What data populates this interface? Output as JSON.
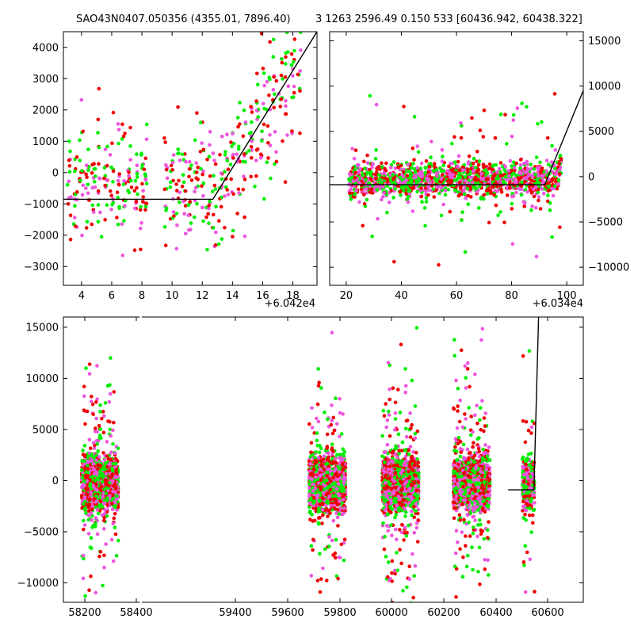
{
  "title": {
    "left": "SAO43N0407.050356 (4355.01, 7896.40)",
    "right": "3 1263 2596.49 0.150 533 [60436.942, 60438.322]"
  },
  "colors": {
    "green": "#00ee00",
    "red": "#ee0000",
    "magenta": "#ee55dd",
    "model_line": "#000000"
  },
  "chart_data": [
    {
      "type": "scatter",
      "name": "top-left",
      "xlim": [
        2.8,
        19.6
      ],
      "ylim": [
        -3600,
        4500
      ],
      "xticks": [
        4,
        6,
        8,
        10,
        12,
        14,
        16,
        18
      ],
      "yticks": [
        -3000,
        -2000,
        -1000,
        0,
        1000,
        2000,
        3000,
        4000
      ],
      "x_offset_label": "+6.042e4",
      "model_line": [
        [
          2.8,
          -850
        ],
        [
          12.7,
          -850
        ],
        [
          19.6,
          4500
        ]
      ]
    },
    {
      "type": "scatter",
      "name": "top-right",
      "xlim": [
        14,
        106
      ],
      "ylim": [
        -12000,
        16000
      ],
      "xticks": [
        20,
        40,
        60,
        80,
        100
      ],
      "yticks": [
        -10000,
        -5000,
        0,
        5000,
        10000,
        15000
      ],
      "x_offset_label": "+6.034e4",
      "model_line": [
        [
          14,
          -900
        ],
        [
          92,
          -900
        ],
        [
          106,
          9500
        ]
      ]
    },
    {
      "type": "scatter",
      "name": "bottom",
      "xlim": [
        58120,
        60680
      ],
      "ylim": [
        -11900,
        16000
      ],
      "xticks": [
        58200,
        58400,
        59400,
        59600,
        59800,
        60000,
        60200,
        60400,
        60600
      ],
      "yticks": [
        -10000,
        -5000,
        0,
        5000,
        10000,
        15000
      ],
      "model_line": [
        [
          60310,
          -900
        ],
        [
          60437,
          -900
        ],
        [
          60460,
          16000
        ]
      ],
      "clusters": [
        {
          "center": 58300,
          "halfwidth": 90
        },
        {
          "center": 59420,
          "halfwidth": 90
        },
        {
          "center": 59780,
          "halfwidth": 90
        },
        {
          "center": 60130,
          "halfwidth": 90
        },
        {
          "center": 60410,
          "halfwidth": 30
        }
      ]
    }
  ]
}
